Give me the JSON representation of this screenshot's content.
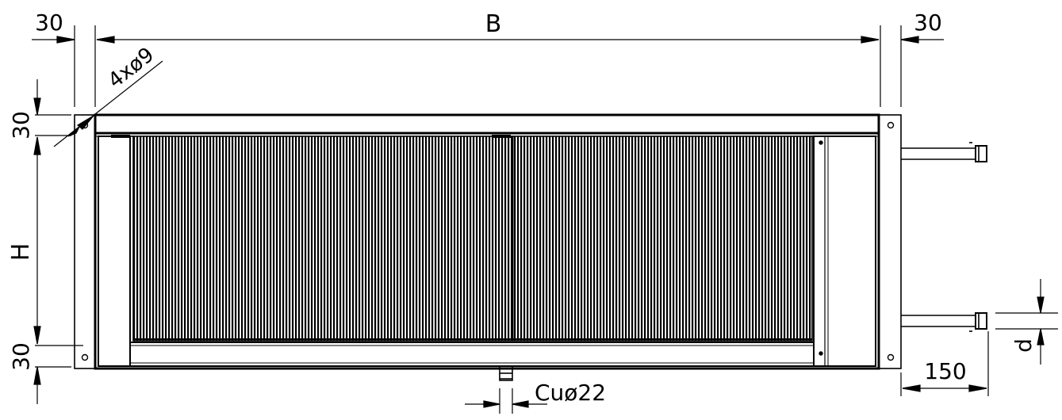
{
  "dimensions": {
    "left_margin": "30",
    "width": "B",
    "right_margin": "30",
    "holes": "4xø9",
    "top_margin": "30",
    "height": "H",
    "bottom_margin": "30",
    "pipe_length": "150",
    "pipe_diameter": "d",
    "drain": "Cuø22"
  },
  "colors": {
    "line": "#000000",
    "background": "#ffffff"
  }
}
